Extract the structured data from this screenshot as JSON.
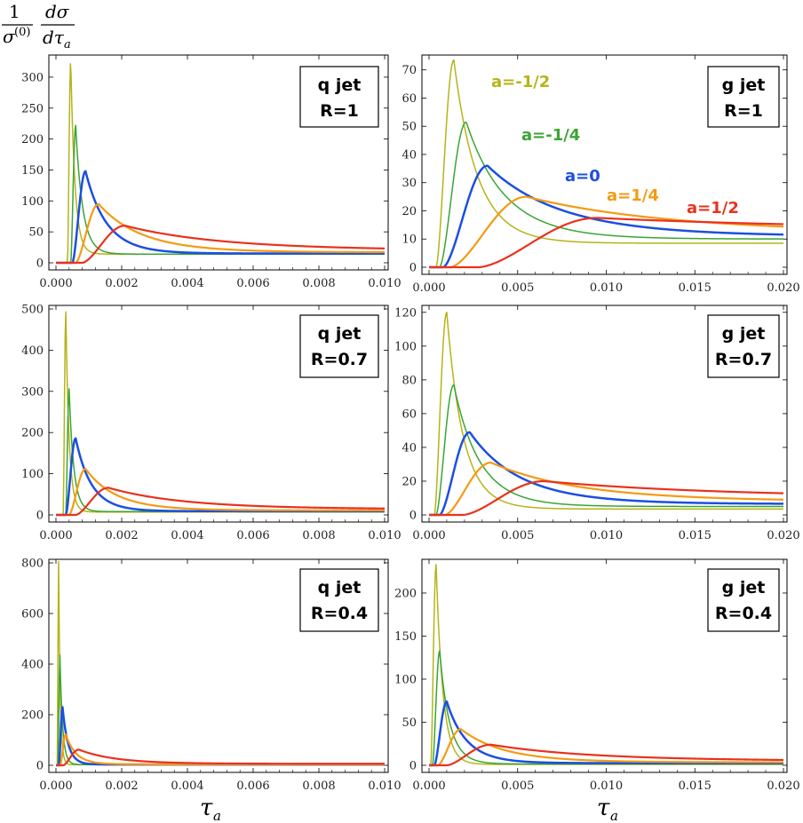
{
  "figure": {
    "ylabel": {
      "numerator_left": "1",
      "denominator_left": "σ",
      "denominator_left_sup": "(0)",
      "numerator_right": "dσ",
      "denominator_right": "dτ",
      "denominator_right_sub": "a"
    },
    "xlabel": {
      "symbol": "τ",
      "sub": "a"
    }
  },
  "colors": {
    "a=-1/2": "#b5b419",
    "a=-1/4": "#3aa533",
    "a=0": "#1c4fe0",
    "a=1/4": "#f59a12",
    "a=1/2": "#e8321e",
    "frame": "#000000"
  },
  "chart_data": [
    {
      "type": "line",
      "id": "q-R1",
      "box": {
        "line1": "q jet",
        "line2": "R=1"
      },
      "xlim": [
        0,
        0.01
      ],
      "ylim": [
        0,
        330
      ],
      "xticks": [
        0.0,
        0.002,
        0.004,
        0.006,
        0.008,
        0.01
      ],
      "xtick_labels": [
        "0.000",
        "0.002",
        "0.004",
        "0.006",
        "0.008",
        "0.010"
      ],
      "yticks": [
        0,
        50,
        100,
        150,
        200,
        250,
        300
      ],
      "ytick_labels": [
        "0",
        "50",
        "100",
        "150",
        "200",
        "250",
        "300"
      ],
      "series": [
        {
          "key": "a=-1/2",
          "x0": 0.00035,
          "xp": 0.00045,
          "yp": 328,
          "tail": 14,
          "k": 0.25,
          "width": 1.5
        },
        {
          "key": "a=-1/4",
          "x0": 0.00045,
          "xp": 0.0006,
          "yp": 222,
          "tail": 14,
          "k": 0.35,
          "width": 1.5
        },
        {
          "key": "a=0",
          "x0": 0.0005,
          "xp": 0.0009,
          "yp": 148,
          "tail": 15,
          "k": 0.5,
          "width": 2.5
        },
        {
          "key": "a=1/4",
          "x0": 0.0006,
          "xp": 0.0013,
          "yp": 95,
          "tail": 17,
          "k": 0.7,
          "width": 2.2
        },
        {
          "key": "a=1/2",
          "x0": 0.0008,
          "xp": 0.0021,
          "yp": 60,
          "tail": 20,
          "k": 1.0,
          "width": 2.2
        }
      ]
    },
    {
      "type": "line",
      "id": "g-R1",
      "box": {
        "line1": "g jet",
        "line2": "R=1"
      },
      "xlim": [
        0,
        0.02
      ],
      "ylim": [
        0,
        74
      ],
      "xticks": [
        0.0,
        0.005,
        0.01,
        0.015,
        0.02
      ],
      "xtick_labels": [
        "0.000",
        "0.005",
        "0.010",
        "0.015",
        "0.020"
      ],
      "yticks": [
        0,
        10,
        20,
        30,
        40,
        50,
        60,
        70
      ],
      "ytick_labels": [
        "0",
        "10",
        "20",
        "30",
        "40",
        "50",
        "60",
        "70"
      ],
      "series": [
        {
          "key": "a=-1/2",
          "x0": 0.0004,
          "xp": 0.0014,
          "yp": 73.5,
          "tail": 8.5,
          "k": 0.3,
          "width": 1.5,
          "label": "a=-1/2"
        },
        {
          "key": "a=-1/4",
          "x0": 0.0006,
          "xp": 0.0021,
          "yp": 51.5,
          "tail": 10,
          "k": 0.4,
          "width": 1.5,
          "label": "a=-1/4"
        },
        {
          "key": "a=0",
          "x0": 0.0008,
          "xp": 0.0033,
          "yp": 36,
          "tail": 11,
          "k": 0.55,
          "width": 2.5,
          "label": "a=0"
        },
        {
          "key": "a=1/4",
          "x0": 0.0012,
          "xp": 0.0055,
          "yp": 25,
          "tail": 12,
          "k": 0.75,
          "width": 2.2,
          "label": "a=1/4"
        },
        {
          "key": "a=1/2",
          "x0": 0.0028,
          "xp": 0.0095,
          "yp": 17.5,
          "tail": 13,
          "k": 1.0,
          "width": 2.2,
          "label": "a=1/2"
        }
      ]
    },
    {
      "type": "line",
      "id": "q-R07",
      "box": {
        "line1": "q jet",
        "line2": "R=0.7"
      },
      "xlim": [
        0,
        0.01
      ],
      "ylim": [
        0,
        500
      ],
      "xticks": [
        0.0,
        0.002,
        0.004,
        0.006,
        0.008,
        0.01
      ],
      "xtick_labels": [
        "0.000",
        "0.002",
        "0.004",
        "0.006",
        "0.008",
        "0.010"
      ],
      "yticks": [
        0,
        100,
        200,
        300,
        400,
        500
      ],
      "ytick_labels": [
        "0",
        "100",
        "200",
        "300",
        "400",
        "500"
      ],
      "series": [
        {
          "key": "a=-1/2",
          "x0": 0.00022,
          "xp": 0.0003,
          "yp": 493,
          "tail": 7,
          "k": 0.25,
          "width": 1.5
        },
        {
          "key": "a=-1/4",
          "x0": 0.0003,
          "xp": 0.0004,
          "yp": 306,
          "tail": 8,
          "k": 0.35,
          "width": 1.5
        },
        {
          "key": "a=0",
          "x0": 0.0003,
          "xp": 0.0006,
          "yp": 186,
          "tail": 9,
          "k": 0.5,
          "width": 2.5
        },
        {
          "key": "a=1/4",
          "x0": 0.0004,
          "xp": 0.0009,
          "yp": 112,
          "tail": 11,
          "k": 0.7,
          "width": 2.2
        },
        {
          "key": "a=1/2",
          "x0": 0.0006,
          "xp": 0.0016,
          "yp": 66,
          "tail": 14,
          "k": 1.0,
          "width": 2.2
        }
      ]
    },
    {
      "type": "line",
      "id": "g-R07",
      "box": {
        "line1": "g jet",
        "line2": "R=0.7"
      },
      "xlim": [
        0,
        0.02
      ],
      "ylim": [
        0,
        122
      ],
      "xticks": [
        0.0,
        0.005,
        0.01,
        0.015,
        0.02
      ],
      "xtick_labels": [
        "0.000",
        "0.005",
        "0.010",
        "0.015",
        "0.020"
      ],
      "yticks": [
        0,
        20,
        40,
        60,
        80,
        100,
        120
      ],
      "ytick_labels": [
        "0",
        "20",
        "40",
        "60",
        "80",
        "100",
        "120"
      ],
      "series": [
        {
          "key": "a=-1/2",
          "x0": 0.0003,
          "xp": 0.001,
          "yp": 120,
          "tail": 3.5,
          "k": 0.3,
          "width": 1.5
        },
        {
          "key": "a=-1/4",
          "x0": 0.0004,
          "xp": 0.0014,
          "yp": 77,
          "tail": 5,
          "k": 0.4,
          "width": 1.5
        },
        {
          "key": "a=0",
          "x0": 0.0006,
          "xp": 0.0023,
          "yp": 49,
          "tail": 6.5,
          "k": 0.55,
          "width": 2.5
        },
        {
          "key": "a=1/4",
          "x0": 0.0009,
          "xp": 0.0035,
          "yp": 31,
          "tail": 8,
          "k": 0.75,
          "width": 2.2
        },
        {
          "key": "a=1/2",
          "x0": 0.0019,
          "xp": 0.0065,
          "yp": 20,
          "tail": 10,
          "k": 1.0,
          "width": 2.2
        }
      ]
    },
    {
      "type": "line",
      "id": "q-R04",
      "box": {
        "line1": "q jet",
        "line2": "R=0.4"
      },
      "xlim": [
        0,
        0.01
      ],
      "ylim": [
        0,
        800
      ],
      "xticks": [
        0.0,
        0.002,
        0.004,
        0.006,
        0.008,
        0.01
      ],
      "xtick_labels": [
        "0.000",
        "0.002",
        "0.004",
        "0.006",
        "0.008",
        "0.010"
      ],
      "yticks": [
        0,
        200,
        400,
        600,
        800
      ],
      "ytick_labels": [
        "0",
        "200",
        "400",
        "600",
        "800"
      ],
      "series": [
        {
          "key": "a=-1/2",
          "x0": 4e-05,
          "xp": 8e-05,
          "yp": 805,
          "tail": 2,
          "k": 0.2,
          "width": 1.5
        },
        {
          "key": "a=-1/4",
          "x0": 6e-05,
          "xp": 0.00012,
          "yp": 435,
          "tail": 2.5,
          "k": 0.3,
          "width": 1.5
        },
        {
          "key": "a=0",
          "x0": 9e-05,
          "xp": 0.0002,
          "yp": 230,
          "tail": 3,
          "k": 0.45,
          "width": 2.5
        },
        {
          "key": "a=1/4",
          "x0": 0.00013,
          "xp": 0.0003,
          "yp": 122,
          "tail": 4,
          "k": 0.65,
          "width": 2.2
        },
        {
          "key": "a=1/2",
          "x0": 0.00022,
          "xp": 0.0007,
          "yp": 62,
          "tail": 6,
          "k": 1.0,
          "width": 2.2
        }
      ]
    },
    {
      "type": "line",
      "id": "g-R04",
      "box": {
        "line1": "g jet",
        "line2": "R=0.4"
      },
      "xlim": [
        0,
        0.02
      ],
      "ylim": [
        0,
        235
      ],
      "xticks": [
        0.0,
        0.005,
        0.01,
        0.015,
        0.02
      ],
      "xtick_labels": [
        "0.000",
        "0.005",
        "0.010",
        "0.015",
        "0.020"
      ],
      "yticks": [
        0,
        50,
        100,
        150,
        200
      ],
      "ytick_labels": [
        "0",
        "50",
        "100",
        "150",
        "200"
      ],
      "series": [
        {
          "key": "a=-1/2",
          "x0": 0.0001,
          "xp": 0.0004,
          "yp": 233,
          "tail": 1,
          "k": 0.25,
          "width": 1.5
        },
        {
          "key": "a=-1/4",
          "x0": 0.0002,
          "xp": 0.0006,
          "yp": 133,
          "tail": 1.5,
          "k": 0.35,
          "width": 1.5
        },
        {
          "key": "a=0",
          "x0": 0.0003,
          "xp": 0.001,
          "yp": 74,
          "tail": 2.5,
          "k": 0.5,
          "width": 2.5
        },
        {
          "key": "a=1/4",
          "x0": 0.0005,
          "xp": 0.0018,
          "yp": 42,
          "tail": 3.5,
          "k": 0.7,
          "width": 2.2
        },
        {
          "key": "a=1/2",
          "x0": 0.001,
          "xp": 0.0035,
          "yp": 24,
          "tail": 5,
          "k": 1.0,
          "width": 2.2
        }
      ]
    }
  ]
}
